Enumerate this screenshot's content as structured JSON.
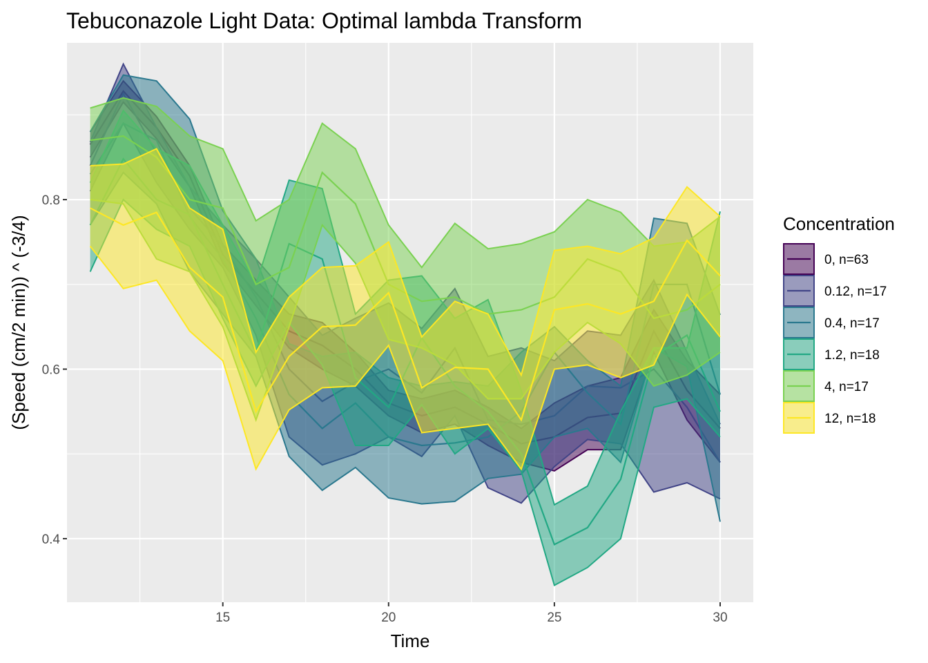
{
  "chart_data": {
    "type": "area",
    "title": "Tebuconazole Light Data: Optimal lambda Transform",
    "xlabel": "Time",
    "ylabel": "(Speed (cm/2 min)) ^ (-3/4)",
    "xlim": [
      10.3,
      31.0
    ],
    "ylim": [
      0.325,
      0.985
    ],
    "xticks": [
      15,
      20,
      25,
      30
    ],
    "yticks": [
      0.4,
      0.6,
      0.8
    ],
    "xtick_labels": [
      "15",
      "20",
      "25",
      "30"
    ],
    "ytick_labels": [
      "0.4",
      "0.6",
      "0.8"
    ],
    "grid": true,
    "legend_title": "Concentration",
    "legend_position": "right",
    "x": [
      11,
      12,
      13,
      14,
      15,
      16,
      17,
      18,
      19,
      20,
      21,
      22,
      23,
      24,
      25,
      26,
      27,
      28,
      29,
      30
    ],
    "series": [
      {
        "name": "0, n=63",
        "color": "#440154",
        "mean": [
          0.865,
          0.928,
          0.885,
          0.828,
          0.735,
          0.69,
          0.645,
          0.628,
          0.6,
          0.56,
          0.545,
          0.555,
          0.535,
          0.512,
          0.52,
          0.543,
          0.548,
          0.645,
          0.575,
          0.53
        ],
        "lower": [
          0.85,
          0.915,
          0.872,
          0.815,
          0.725,
          0.675,
          0.625,
          0.6,
          0.58,
          0.545,
          0.525,
          0.535,
          0.51,
          0.49,
          0.48,
          0.505,
          0.505,
          0.62,
          0.54,
          0.49
        ],
        "upper": [
          0.88,
          0.94,
          0.898,
          0.84,
          0.747,
          0.705,
          0.665,
          0.655,
          0.62,
          0.575,
          0.565,
          0.575,
          0.555,
          0.53,
          0.56,
          0.58,
          0.59,
          0.67,
          0.61,
          0.57
        ]
      },
      {
        "name": "0.12, n=17",
        "color": "#414487",
        "mean": [
          0.84,
          0.925,
          0.855,
          0.79,
          0.745,
          0.685,
          0.6,
          0.562,
          0.585,
          0.6,
          0.572,
          0.625,
          0.54,
          0.535,
          0.545,
          0.58,
          0.578,
          0.6,
          0.555,
          0.49
        ],
        "lower": [
          0.81,
          0.89,
          0.82,
          0.765,
          0.72,
          0.64,
          0.52,
          0.487,
          0.5,
          0.52,
          0.497,
          0.545,
          0.46,
          0.442,
          0.485,
          0.517,
          0.512,
          0.455,
          0.466,
          0.447
        ],
        "upper": [
          0.868,
          0.96,
          0.885,
          0.815,
          0.77,
          0.73,
          0.685,
          0.64,
          0.66,
          0.678,
          0.648,
          0.695,
          0.615,
          0.625,
          0.61,
          0.645,
          0.64,
          0.705,
          0.62,
          0.535
        ]
      },
      {
        "name": "0.4, n=17",
        "color": "#2A788E",
        "mean": [
          0.83,
          0.89,
          0.87,
          0.78,
          0.73,
          0.66,
          0.57,
          0.53,
          0.56,
          0.52,
          0.51,
          0.513,
          0.52,
          0.55,
          0.62,
          0.572,
          0.535,
          0.7,
          0.7,
          0.57
        ],
        "lower": [
          0.77,
          0.832,
          0.795,
          0.715,
          0.665,
          0.615,
          0.497,
          0.457,
          0.484,
          0.448,
          0.441,
          0.444,
          0.471,
          0.476,
          0.52,
          0.53,
          0.49,
          0.625,
          0.603,
          0.42
        ],
        "upper": [
          0.88,
          0.947,
          0.94,
          0.895,
          0.787,
          0.73,
          0.63,
          0.615,
          0.62,
          0.59,
          0.58,
          0.585,
          0.58,
          0.62,
          0.65,
          0.61,
          0.58,
          0.778,
          0.772,
          0.664
        ]
      },
      {
        "name": "1.2, n=18",
        "color": "#22A884",
        "mean": [
          0.77,
          0.848,
          0.8,
          0.782,
          0.7,
          0.62,
          0.748,
          0.73,
          0.59,
          0.555,
          0.637,
          0.58,
          0.55,
          0.5,
          0.393,
          0.413,
          0.47,
          0.615,
          0.64,
          0.55
        ],
        "lower": [
          0.715,
          0.8,
          0.765,
          0.745,
          0.66,
          0.58,
          0.655,
          0.605,
          0.51,
          0.51,
          0.558,
          0.5,
          0.53,
          0.48,
          0.345,
          0.366,
          0.4,
          0.555,
          0.565,
          0.52
        ],
        "upper": [
          0.82,
          0.905,
          0.86,
          0.84,
          0.77,
          0.7,
          0.823,
          0.813,
          0.665,
          0.705,
          0.71,
          0.66,
          0.682,
          0.575,
          0.44,
          0.462,
          0.55,
          0.625,
          0.625,
          0.786
        ]
      },
      {
        "name": "4, n=17",
        "color": "#7AD151",
        "mean": [
          0.87,
          0.875,
          0.85,
          0.8,
          0.79,
          0.7,
          0.72,
          0.832,
          0.795,
          0.7,
          0.68,
          0.685,
          0.665,
          0.67,
          0.685,
          0.73,
          0.715,
          0.66,
          0.67,
          0.7
        ],
        "lower": [
          0.8,
          0.795,
          0.73,
          0.715,
          0.65,
          0.54,
          0.65,
          0.77,
          0.725,
          0.635,
          0.625,
          0.605,
          0.565,
          0.565,
          0.62,
          0.655,
          0.63,
          0.58,
          0.593,
          0.62
        ],
        "upper": [
          0.908,
          0.92,
          0.91,
          0.875,
          0.86,
          0.775,
          0.8,
          0.89,
          0.86,
          0.77,
          0.72,
          0.772,
          0.742,
          0.748,
          0.762,
          0.8,
          0.785,
          0.745,
          0.75,
          0.78
        ]
      },
      {
        "name": "12, n=18",
        "color": "#FDE725",
        "mean": [
          0.79,
          0.77,
          0.785,
          0.72,
          0.685,
          0.55,
          0.615,
          0.65,
          0.652,
          0.69,
          0.578,
          0.602,
          0.6,
          0.54,
          0.67,
          0.677,
          0.665,
          0.68,
          0.752,
          0.71
        ],
        "lower": [
          0.745,
          0.695,
          0.705,
          0.645,
          0.61,
          0.482,
          0.552,
          0.578,
          0.58,
          0.628,
          0.525,
          0.53,
          0.535,
          0.482,
          0.6,
          0.605,
          0.59,
          0.605,
          0.688,
          0.638
        ],
        "upper": [
          0.84,
          0.842,
          0.86,
          0.79,
          0.765,
          0.62,
          0.685,
          0.72,
          0.722,
          0.75,
          0.638,
          0.68,
          0.665,
          0.593,
          0.74,
          0.745,
          0.736,
          0.755,
          0.815,
          0.78
        ]
      }
    ]
  }
}
